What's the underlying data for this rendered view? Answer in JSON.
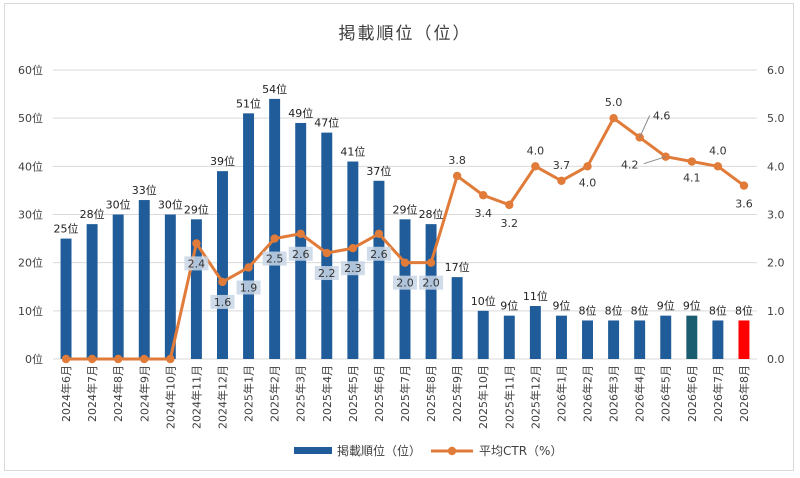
{
  "chart_data": {
    "type": "bar+line",
    "title": "掲載順位（位）",
    "categories": [
      "2024年6月",
      "2024年7月",
      "2024年8月",
      "2024年9月",
      "2024年10月",
      "2024年11月",
      "2024年12月",
      "2025年1月",
      "2025年2月",
      "2025年3月",
      "2025年4月",
      "2025年5月",
      "2025年6月",
      "2025年7月",
      "2025年8月",
      "2025年9月",
      "2025年10月",
      "2025年11月",
      "2025年12月",
      "2026年1月",
      "2026年2月",
      "2026年3月",
      "2026年4月",
      "2026年5月",
      "2026年6月",
      "2026年7月",
      "2026年8月"
    ],
    "series": [
      {
        "name": "掲載順位（位）",
        "type": "bar",
        "axis": "left",
        "values": [
          25,
          28,
          30,
          33,
          30,
          29,
          39,
          51,
          54,
          49,
          47,
          41,
          37,
          29,
          28,
          17,
          10,
          9,
          11,
          9,
          8,
          8,
          8,
          9,
          9,
          8,
          8
        ],
        "labels": [
          "25位",
          "28位",
          "30位",
          "33位",
          "30位",
          "29位",
          "39位",
          "51位",
          "54位",
          "49位",
          "47位",
          "41位",
          "37位",
          "29位",
          "28位",
          "17位",
          "10位",
          "9位",
          "11位",
          "9位",
          "8位",
          "8位",
          "8位",
          "9位",
          "9位",
          "8位",
          "8位"
        ],
        "bar_colors": [
          "#1f5c99",
          "#1f5c99",
          "#1f5c99",
          "#1f5c99",
          "#1f5c99",
          "#1f5c99",
          "#1f5c99",
          "#1f5c99",
          "#1f5c99",
          "#1f5c99",
          "#1f5c99",
          "#1f5c99",
          "#1f5c99",
          "#1f5c99",
          "#1f5c99",
          "#1f5c99",
          "#1f5c99",
          "#1f5c99",
          "#1f5c99",
          "#1f5c99",
          "#1f5c99",
          "#1f5c99",
          "#1f5c99",
          "#1f5c99",
          "#1a5c70",
          "#1f5c99",
          "#ff0000"
        ]
      },
      {
        "name": "平均CTR（%）",
        "type": "line",
        "axis": "right",
        "color": "#e07b39",
        "values": [
          0,
          0,
          0,
          0,
          0,
          2.4,
          1.6,
          1.9,
          2.5,
          2.6,
          2.2,
          2.3,
          2.6,
          2.0,
          2.0,
          3.8,
          3.4,
          3.2,
          4.0,
          3.7,
          4.0,
          5.0,
          4.6,
          4.2,
          4.1,
          4.0,
          3.6
        ],
        "labels": [
          "",
          "",
          "",
          "",
          "",
          "2.4",
          "1.6",
          "1.9",
          "2.5",
          "2.6",
          "2.2",
          "2.3",
          "2.6",
          "2.0",
          "2.0",
          "3.8",
          "3.4",
          "3.2",
          "4.0",
          "3.7",
          "4.0",
          "5.0",
          "4.6",
          "4.2",
          "4.1",
          "4.0",
          "3.6"
        ]
      }
    ],
    "y_left": {
      "min": 0,
      "max": 60,
      "ticks": [
        "0位",
        "10位",
        "20位",
        "30位",
        "40位",
        "50位",
        "60位"
      ]
    },
    "y_right": {
      "min": 0,
      "max": 6,
      "ticks": [
        "0.0",
        "1.0",
        "2.0",
        "3.0",
        "4.0",
        "5.0",
        "6.0"
      ]
    },
    "grid": true,
    "legend_position": "bottom",
    "legend": [
      "掲載順位（位）",
      "平均CTR（%）"
    ]
  }
}
